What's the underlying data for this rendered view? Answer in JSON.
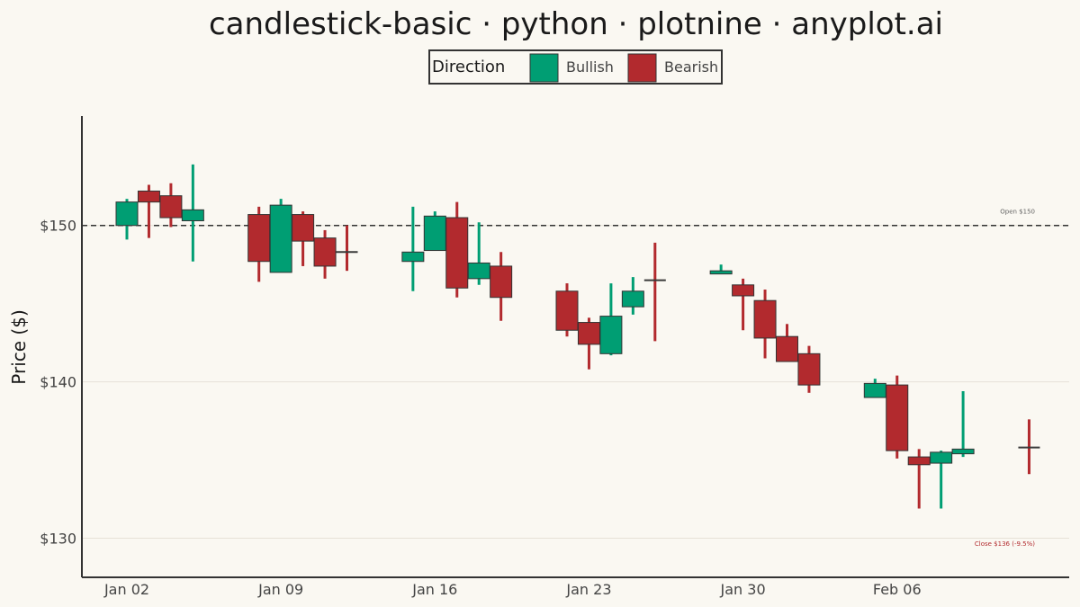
{
  "chart_data": {
    "type": "candlestick",
    "title": "candlestick-basic · python · plotnine · anyplot.ai",
    "ylabel": "Price ($)",
    "xlabel": "",
    "ylim": [
      127.5,
      157
    ],
    "y_ticks": [
      130,
      140,
      150
    ],
    "y_tick_labels": [
      "$130",
      "$140",
      "$150"
    ],
    "x_tick_dates": [
      "2024-01-02",
      "2024-01-09",
      "2024-01-16",
      "2024-01-23",
      "2024-01-30",
      "2024-02-06"
    ],
    "x_tick_labels": [
      "Jan 02",
      "Jan 09",
      "Jan 16",
      "Jan 23",
      "Jan 30",
      "Feb 06"
    ],
    "legend": {
      "title": "Direction",
      "placement": "top-center",
      "entries": [
        {
          "label": "Bullish",
          "color": "#009E73"
        },
        {
          "label": "Bearish",
          "color": "#B22A2E"
        }
      ]
    },
    "reference_line": {
      "value": 150,
      "label": "Open $150",
      "style": "dashed"
    },
    "end_annotation": {
      "label": "Close $136  (-9.5%)",
      "color": "#B22A2E"
    },
    "grid": "horizontal",
    "colors": {
      "bullish": "#009E73",
      "bearish": "#B22A2E",
      "background": "#FAF8F2",
      "axis": "#333333"
    },
    "candles": [
      {
        "date": "2024-01-02",
        "open": 150.0,
        "high": 151.7,
        "low": 149.1,
        "close": 151.5
      },
      {
        "date": "2024-01-03",
        "open": 152.2,
        "high": 152.6,
        "low": 149.2,
        "close": 151.5
      },
      {
        "date": "2024-01-04",
        "open": 151.9,
        "high": 152.7,
        "low": 149.9,
        "close": 150.5
      },
      {
        "date": "2024-01-05",
        "open": 150.3,
        "high": 153.9,
        "low": 147.7,
        "close": 151.0
      },
      {
        "date": "2024-01-08",
        "open": 150.7,
        "high": 151.2,
        "low": 146.4,
        "close": 147.7
      },
      {
        "date": "2024-01-09",
        "open": 147.0,
        "high": 151.7,
        "low": 147.0,
        "close": 151.3
      },
      {
        "date": "2024-01-10",
        "open": 150.7,
        "high": 150.9,
        "low": 147.4,
        "close": 149.0
      },
      {
        "date": "2024-01-11",
        "open": 149.2,
        "high": 149.7,
        "low": 146.6,
        "close": 147.4
      },
      {
        "date": "2024-01-12",
        "open": 148.3,
        "high": 150.0,
        "low": 147.1,
        "close": 148.3
      },
      {
        "date": "2024-01-15",
        "open": 147.7,
        "high": 151.2,
        "low": 145.8,
        "close": 148.3
      },
      {
        "date": "2024-01-16",
        "open": 148.4,
        "high": 150.9,
        "low": 148.4,
        "close": 150.6
      },
      {
        "date": "2024-01-17",
        "open": 150.5,
        "high": 151.5,
        "low": 145.4,
        "close": 146.0
      },
      {
        "date": "2024-01-18",
        "open": 146.6,
        "high": 150.2,
        "low": 146.2,
        "close": 147.6
      },
      {
        "date": "2024-01-19",
        "open": 147.4,
        "high": 148.3,
        "low": 143.9,
        "close": 145.4
      },
      {
        "date": "2024-01-22",
        "open": 145.8,
        "high": 146.3,
        "low": 142.9,
        "close": 143.3
      },
      {
        "date": "2024-01-23",
        "open": 143.8,
        "high": 144.1,
        "low": 140.8,
        "close": 142.4
      },
      {
        "date": "2024-01-24",
        "open": 141.8,
        "high": 146.3,
        "low": 141.7,
        "close": 144.2
      },
      {
        "date": "2024-01-25",
        "open": 144.8,
        "high": 146.7,
        "low": 144.3,
        "close": 145.8
      },
      {
        "date": "2024-01-26",
        "open": 146.5,
        "high": 148.9,
        "low": 142.6,
        "close": 146.5
      },
      {
        "date": "2024-01-29",
        "open": 146.9,
        "high": 147.5,
        "low": 146.9,
        "close": 147.1
      },
      {
        "date": "2024-01-30",
        "open": 146.2,
        "high": 146.6,
        "low": 143.3,
        "close": 145.5
      },
      {
        "date": "2024-01-31",
        "open": 145.2,
        "high": 145.9,
        "low": 141.5,
        "close": 142.8
      },
      {
        "date": "2024-02-01",
        "open": 142.9,
        "high": 143.7,
        "low": 141.3,
        "close": 141.3
      },
      {
        "date": "2024-02-02",
        "open": 141.8,
        "high": 142.3,
        "low": 139.3,
        "close": 139.8
      },
      {
        "date": "2024-02-05",
        "open": 139.0,
        "high": 140.2,
        "low": 139.0,
        "close": 139.9
      },
      {
        "date": "2024-02-06",
        "open": 139.8,
        "high": 140.4,
        "low": 135.1,
        "close": 135.6
      },
      {
        "date": "2024-02-07",
        "open": 135.2,
        "high": 135.7,
        "low": 131.9,
        "close": 134.7
      },
      {
        "date": "2024-02-08",
        "open": 134.8,
        "high": 135.6,
        "low": 131.9,
        "close": 135.5
      },
      {
        "date": "2024-02-09",
        "open": 135.4,
        "high": 139.4,
        "low": 135.2,
        "close": 135.7
      },
      {
        "date": "2024-02-12",
        "open": 135.8,
        "high": 137.6,
        "low": 134.1,
        "close": 135.8
      }
    ]
  }
}
